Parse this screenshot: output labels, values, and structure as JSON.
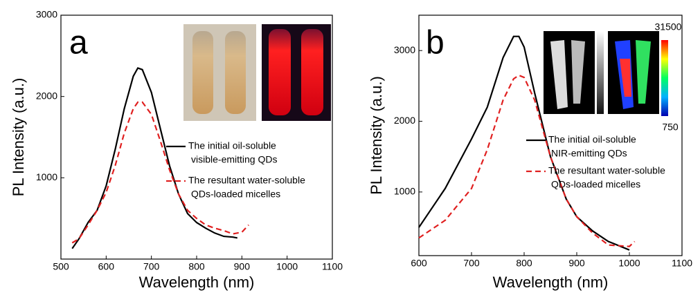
{
  "chart_data": [
    {
      "type": "line",
      "panel_label": "a",
      "xlabel": "Wavelength (nm)",
      "ylabel": "PL Intensity (a.u.)",
      "x": [
        525,
        540,
        560,
        580,
        600,
        620,
        640,
        660,
        670,
        680,
        700,
        720,
        740,
        760,
        780,
        800,
        820,
        840,
        860,
        880,
        890,
        900,
        915
      ],
      "series": [
        {
          "name": [
            "The initial oil-soluble",
            "visible-emitting QDs"
          ],
          "color": "#000000",
          "dash": false,
          "values": [
            130,
            250,
            450,
            600,
            900,
            1350,
            1850,
            2250,
            2350,
            2330,
            2050,
            1600,
            1150,
            800,
            560,
            450,
            380,
            320,
            280,
            270,
            260,
            null,
            null
          ]
        },
        {
          "name": [
            "The resultant water-soluble",
            "QDs-loaded micelles"
          ],
          "color": "#e02020",
          "dash": true,
          "values": [
            200,
            250,
            420,
            600,
            820,
            1150,
            1550,
            1850,
            1930,
            1930,
            1780,
            1450,
            1100,
            800,
            600,
            500,
            420,
            380,
            350,
            310,
            320,
            330,
            420
          ]
        }
      ],
      "xlim": [
        500,
        1100
      ],
      "xticks": [
        500,
        600,
        700,
        800,
        900,
        1000,
        1100
      ],
      "ylim": [
        0,
        3000
      ],
      "yticks": [
        1000,
        2000,
        3000
      ]
    },
    {
      "type": "line",
      "panel_label": "b",
      "xlabel": "Wavelength (nm)",
      "ylabel": "PL Intensity (a.u.)",
      "colorbar_labels": [
        "31500",
        "750"
      ],
      "x": [
        600,
        650,
        700,
        730,
        760,
        780,
        790,
        800,
        820,
        850,
        880,
        900,
        930,
        960,
        1000,
        1010
      ],
      "series": [
        {
          "name": [
            "The initial oil-soluble",
            "NIR-emitting QDs"
          ],
          "color": "#000000",
          "dash": false,
          "values": [
            500,
            1050,
            1750,
            2200,
            2900,
            3200,
            3200,
            3050,
            2400,
            1500,
            900,
            650,
            450,
            300,
            180,
            null
          ]
        },
        {
          "name": [
            "The resultant water-soluble",
            "QDs-loaded micelles"
          ],
          "color": "#e02020",
          "dash": true,
          "values": [
            350,
            600,
            1050,
            1600,
            2300,
            2600,
            2650,
            2620,
            2300,
            1500,
            900,
            650,
            420,
            250,
            230,
            300
          ]
        }
      ],
      "xlim": [
        600,
        1100
      ],
      "xticks": [
        600,
        700,
        800,
        900,
        1000,
        1100
      ],
      "ylim": [
        100,
        3500
      ],
      "yticks": [
        1000,
        2000,
        3000
      ]
    }
  ]
}
